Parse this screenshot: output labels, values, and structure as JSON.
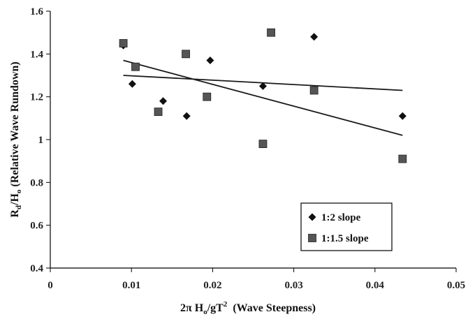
{
  "chart_data": {
    "type": "scatter",
    "xlabel": "2π Hₒ/gT² (Wave Steepness)",
    "ylabel": "R_d/Hₒ (Relative Wave Rundown)",
    "xlim": [
      0,
      0.05
    ],
    "ylim": [
      0.4,
      1.6
    ],
    "x_ticks": [
      "0",
      "0.01",
      "0.02",
      "0.03",
      "0.04",
      "0.05"
    ],
    "y_ticks": [
      "0.4",
      "0.6",
      "0.8",
      "1",
      "1.2",
      "1.4",
      "1.6"
    ],
    "grid": false,
    "legend_position": "bottom-right",
    "series": [
      {
        "name": "1:2 slope",
        "marker": "diamond",
        "color": "#111111",
        "x": [
          0.009,
          0.0101,
          0.0139,
          0.0168,
          0.0197,
          0.0262,
          0.0325,
          0.0434
        ],
        "y": [
          1.44,
          1.26,
          1.18,
          1.11,
          1.37,
          1.25,
          1.48,
          1.11
        ],
        "trendline": {
          "x": [
            0.009,
            0.0434
          ],
          "y": [
            1.3,
            1.23
          ]
        }
      },
      {
        "name": "1:1.5 slope",
        "marker": "square",
        "color": "#555555",
        "x": [
          0.009,
          0.0105,
          0.0133,
          0.0167,
          0.0193,
          0.0262,
          0.0272,
          0.0325,
          0.0434
        ],
        "y": [
          1.45,
          1.34,
          1.13,
          1.4,
          1.2,
          0.98,
          1.5,
          1.23,
          0.91
        ],
        "trendline": {
          "x": [
            0.009,
            0.0434
          ],
          "y": [
            1.37,
            1.02
          ]
        }
      }
    ]
  }
}
